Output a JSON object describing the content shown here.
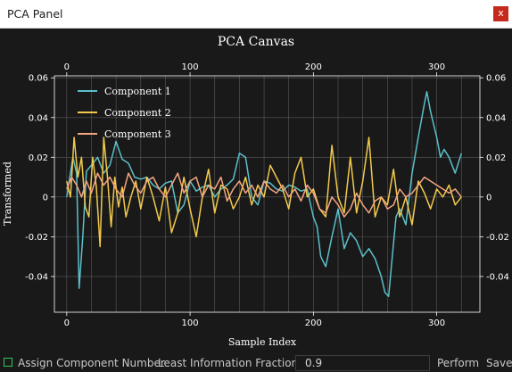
{
  "window": {
    "title": "PCA Panel",
    "close_label": "x"
  },
  "chart_data": {
    "type": "line",
    "title": "PCA Canvas",
    "xlabel": "Sample Index",
    "ylabel": "Transformed",
    "xlim": [
      -10,
      335
    ],
    "ylim": [
      -0.058,
      0.061
    ],
    "x_ticks": [
      0,
      100,
      200,
      300
    ],
    "y_ticks": [
      -0.04,
      -0.02,
      0,
      0.02,
      0.04,
      0.06
    ],
    "y_tick_labels": [
      "-0.04",
      "-0.02",
      "0",
      "0.02",
      "0.04",
      "0.06"
    ],
    "top_axis_ticks": true,
    "right_axis_ticks": true,
    "grid": true,
    "legend_position": "top-left",
    "background": "#191919",
    "series": [
      {
        "name": "Component 1",
        "color": "#5bc0cb",
        "x": [
          0,
          5,
          8,
          10,
          13,
          16,
          20,
          25,
          30,
          35,
          40,
          45,
          50,
          55,
          60,
          65,
          70,
          75,
          80,
          85,
          90,
          95,
          100,
          105,
          110,
          115,
          120,
          125,
          130,
          135,
          140,
          145,
          150,
          155,
          160,
          165,
          170,
          175,
          180,
          185,
          190,
          195,
          200,
          203,
          206,
          210,
          215,
          220,
          225,
          230,
          235,
          240,
          245,
          250,
          255,
          258,
          261,
          264,
          267,
          270,
          275,
          280,
          285,
          290,
          292,
          295,
          300,
          303,
          306,
          310,
          315,
          320
        ],
        "values": [
          0.0,
          0.02,
          0.012,
          -0.046,
          -0.02,
          0.013,
          0.016,
          0.02,
          0.012,
          0.016,
          0.028,
          0.019,
          0.017,
          0.01,
          0.009,
          0.01,
          0.006,
          0.004,
          0.007,
          0.008,
          -0.008,
          -0.004,
          0.008,
          0.003,
          0.005,
          0.006,
          0.0,
          0.004,
          0.006,
          0.009,
          0.022,
          0.02,
          0.0,
          -0.004,
          0.008,
          0.007,
          0.004,
          0.003,
          0.006,
          0.005,
          0.003,
          0.004,
          -0.01,
          -0.015,
          -0.03,
          -0.035,
          -0.02,
          -0.006,
          -0.026,
          -0.018,
          -0.022,
          -0.03,
          -0.026,
          -0.031,
          -0.04,
          -0.048,
          -0.05,
          -0.03,
          -0.01,
          -0.006,
          -0.014,
          0.012,
          0.03,
          0.047,
          0.053,
          0.043,
          0.03,
          0.02,
          0.024,
          0.02,
          0.012,
          0.022
        ]
      },
      {
        "name": "Component 2",
        "color": "#f2c94c",
        "x": [
          0,
          3,
          6,
          9,
          12,
          15,
          18,
          21,
          24,
          27,
          30,
          33,
          36,
          39,
          42,
          45,
          48,
          52,
          56,
          60,
          65,
          70,
          75,
          80,
          85,
          90,
          95,
          100,
          105,
          110,
          115,
          120,
          125,
          130,
          135,
          140,
          145,
          150,
          155,
          160,
          165,
          170,
          175,
          180,
          185,
          190,
          195,
          200,
          205,
          210,
          215,
          220,
          225,
          230,
          235,
          240,
          245,
          250,
          255,
          260,
          265,
          270,
          275,
          280,
          285,
          290,
          295,
          300,
          305,
          310,
          315,
          320
        ],
        "values": [
          0.008,
          0.0,
          0.03,
          0.01,
          0.02,
          -0.005,
          -0.01,
          0.02,
          0.005,
          -0.025,
          0.03,
          0.01,
          -0.015,
          0.01,
          -0.005,
          0.005,
          -0.01,
          0.0,
          0.008,
          -0.006,
          0.01,
          0.0,
          -0.012,
          0.005,
          -0.018,
          -0.008,
          0.01,
          -0.006,
          -0.02,
          0.0,
          0.014,
          -0.008,
          0.006,
          0.004,
          -0.006,
          0.0,
          0.01,
          -0.004,
          0.006,
          0.0,
          0.016,
          0.01,
          0.004,
          -0.006,
          0.012,
          0.02,
          0.0,
          0.004,
          -0.006,
          -0.01,
          0.026,
          0.0,
          -0.008,
          0.02,
          -0.008,
          0.008,
          0.03,
          -0.01,
          0.0,
          -0.004,
          0.014,
          -0.01,
          0.0,
          -0.014,
          0.008,
          0.002,
          -0.006,
          0.004,
          0.0,
          0.006,
          -0.004,
          0.0
        ]
      },
      {
        "name": "Component 3",
        "color": "#f4a582",
        "x": [
          0,
          4,
          8,
          12,
          16,
          20,
          25,
          30,
          35,
          40,
          45,
          50,
          55,
          60,
          65,
          70,
          75,
          80,
          85,
          90,
          95,
          100,
          105,
          110,
          115,
          120,
          125,
          130,
          135,
          140,
          145,
          150,
          155,
          160,
          165,
          170,
          175,
          180,
          185,
          190,
          195,
          200,
          205,
          210,
          215,
          220,
          225,
          230,
          235,
          240,
          245,
          250,
          255,
          260,
          265,
          270,
          275,
          280,
          285,
          290,
          295,
          300,
          305,
          310,
          315,
          320
        ],
        "values": [
          0.004,
          0.01,
          0.006,
          0.0,
          0.008,
          0.002,
          0.012,
          0.006,
          0.01,
          0.004,
          0.0,
          0.012,
          0.006,
          0.002,
          0.008,
          0.01,
          0.004,
          0.0,
          0.006,
          0.012,
          0.002,
          0.008,
          0.01,
          0.0,
          0.006,
          0.004,
          0.01,
          -0.002,
          0.004,
          0.008,
          0.002,
          0.006,
          0.0,
          0.008,
          0.004,
          0.002,
          0.006,
          0.0,
          0.004,
          -0.002,
          0.006,
          0.002,
          -0.006,
          -0.008,
          0.0,
          -0.004,
          -0.01,
          -0.006,
          0.002,
          -0.004,
          -0.008,
          -0.002,
          0.0,
          -0.006,
          -0.004,
          0.004,
          0.0,
          0.002,
          0.006,
          0.01,
          0.008,
          0.006,
          0.004,
          0.002,
          0.004,
          0.0
        ]
      }
    ]
  },
  "bottombar": {
    "assign_label": "Assign Component Number",
    "fraction_label": "Least Information Fraction:",
    "fraction_value": "0.9",
    "perform_label": "Perform",
    "save_label": "Save"
  }
}
